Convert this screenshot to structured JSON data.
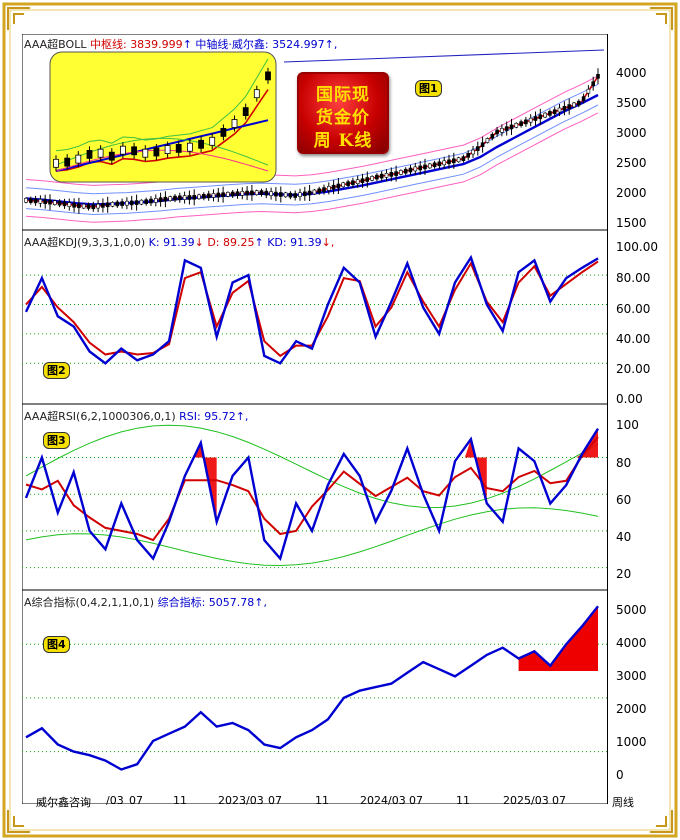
{
  "colors": {
    "frame_gold": "#d4a520",
    "ma": "#d00000",
    "mid": "#0000d0",
    "band": "#7090ff",
    "grid_green": "#00b000",
    "fill_red": "#ee0000",
    "inset_bg": "#ffff33"
  },
  "panel1": {
    "header_prefix": "AAA超BOLL",
    "mid_label": "中枢线:",
    "mid_value": "3839.999",
    "mid_arrow": "↑",
    "main_label": "中轴线·威尔鑫:",
    "main_value": "3524.997",
    "main_arrow": "↑,",
    "badge": "图1",
    "stamp_lines": [
      "国际现",
      "货金价",
      "周  K线"
    ]
  },
  "panel2": {
    "header_prefix": "AAA超KDJ(9,3,3,1,0,0)",
    "k_label": "K:",
    "k_value": "91.39",
    "k_arrow": "↓",
    "d_label": "D:",
    "d_value": "89.25",
    "d_arrow": "↑",
    "kd_label": "KD:",
    "kd_value": "91.39",
    "kd_arrow": "↓,",
    "badge": "图2"
  },
  "panel3": {
    "header_prefix": "AAA超RSI(6,2,1000306,0,1)",
    "rsi_label": "RSI:",
    "rsi_value": "95.72",
    "rsi_arrow": "↑,",
    "badge": "图3"
  },
  "panel4": {
    "header_prefix": "A综合指标(0,4,2,1,1,0,1)",
    "ind_label": "综合指标:",
    "ind_value": "5057.78",
    "ind_arrow": "↑,",
    "badge": "图4"
  },
  "x_axis": {
    "watermark": "威尔鑫咨询",
    "ticks": [
      "/03",
      "07",
      "11",
      "2023/03",
      "07",
      "11",
      "2024/03",
      "07",
      "11",
      "2025/03",
      "07"
    ],
    "period_label": "周线"
  },
  "chart_data": [
    {
      "type": "line",
      "panel": "BOLL",
      "y_ticks": [
        4000,
        3500,
        3000,
        2500,
        2000,
        1500
      ],
      "ylim": [
        1350,
        4350
      ],
      "series": [
        {
          "name": "中枢线",
          "values": [
            1750,
            1730,
            1700,
            1660,
            1640,
            1680,
            1700,
            1720,
            1760,
            1790,
            1800,
            1830,
            1850,
            1870,
            1880,
            1850,
            1830,
            1880,
            1950,
            2020,
            2080,
            2150,
            2200,
            2270,
            2330,
            2390,
            2450,
            2650,
            2900,
            3000,
            3100,
            3200,
            3300,
            3400,
            3839.999
          ]
        },
        {
          "name": "中轴线·威尔鑫",
          "values": [
            1780,
            1760,
            1730,
            1700,
            1680,
            1690,
            1700,
            1720,
            1740,
            1770,
            1790,
            1810,
            1830,
            1850,
            1860,
            1850,
            1840,
            1860,
            1900,
            1950,
            2000,
            2060,
            2120,
            2180,
            2240,
            2300,
            2360,
            2480,
            2650,
            2800,
            2950,
            3100,
            3250,
            3380,
            3524.997
          ]
        }
      ]
    },
    {
      "type": "line",
      "panel": "KDJ",
      "y_ticks": [
        100,
        80,
        60,
        40,
        20,
        0
      ],
      "ylim": [
        -5,
        108
      ],
      "series": [
        {
          "name": "K",
          "values": [
            55,
            78,
            52,
            45,
            28,
            20,
            30,
            22,
            26,
            35,
            90,
            85,
            38,
            75,
            80,
            25,
            20,
            35,
            30,
            60,
            85,
            75,
            38,
            62,
            88,
            58,
            40,
            75,
            92,
            60,
            42,
            82,
            90,
            62,
            78,
            85,
            91.39
          ]
        },
        {
          "name": "D",
          "values": [
            60,
            72,
            58,
            48,
            34,
            26,
            28,
            26,
            27,
            33,
            78,
            82,
            45,
            68,
            76,
            35,
            25,
            32,
            32,
            52,
            78,
            76,
            45,
            58,
            82,
            62,
            45,
            70,
            88,
            62,
            48,
            75,
            86,
            66,
            74,
            82,
            89.25
          ]
        }
      ]
    },
    {
      "type": "line",
      "panel": "RSI",
      "y_ticks": [
        100,
        80,
        60,
        40,
        20
      ],
      "ylim": [
        10,
        107
      ],
      "series": [
        {
          "name": "RSI",
          "values": [
            58,
            80,
            50,
            72,
            40,
            30,
            55,
            35,
            25,
            45,
            70,
            88,
            45,
            70,
            80,
            35,
            25,
            55,
            40,
            65,
            82,
            70,
            45,
            62,
            85,
            60,
            40,
            78,
            90,
            55,
            45,
            85,
            78,
            55,
            65,
            82,
            95.72
          ]
        }
      ]
    },
    {
      "type": "line",
      "panel": "综合指标",
      "y_ticks": [
        5000,
        4000,
        3000,
        2000,
        1000,
        0
      ],
      "ylim": [
        -350,
        5400
      ],
      "series": [
        {
          "name": "综合指标",
          "values": [
            1400,
            1650,
            1200,
            1000,
            900,
            750,
            500,
            650,
            1300,
            1500,
            1700,
            2100,
            1700,
            1800,
            1600,
            1200,
            1100,
            1400,
            1600,
            1900,
            2500,
            2700,
            2800,
            2900,
            3200,
            3500,
            3300,
            3100,
            3400,
            3700,
            3900,
            3600,
            3800,
            3400,
            4000,
            4500,
            5057.78
          ]
        }
      ]
    }
  ]
}
